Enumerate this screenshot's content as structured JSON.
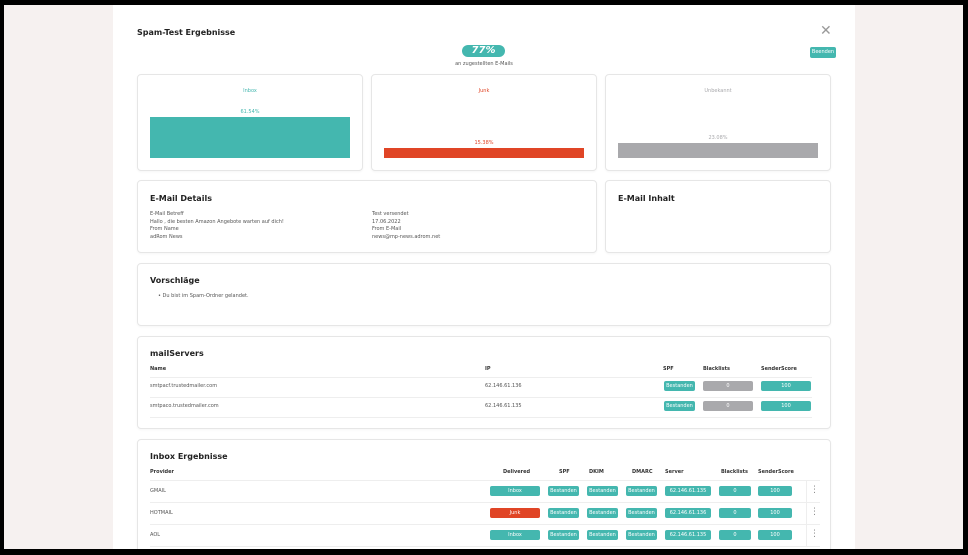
{
  "title": "Spam-Test Ergebnisse",
  "score": "77%",
  "score_caption": "an zugestellten E-Mails",
  "finish_label": "Beenden",
  "colors": {
    "teal": "#44b7af",
    "red": "#e04526",
    "gray": "#a9a9ac"
  },
  "stats": [
    {
      "label": "Inbox",
      "percent": 61.54,
      "text": "61.54%",
      "color": "#44b7af"
    },
    {
      "label": "Junk",
      "percent": 15.38,
      "text": "15.38%",
      "color": "#e04526"
    },
    {
      "label": "Unbekannt",
      "percent": 23.08,
      "text": "23.08%",
      "color": "#a9a9ac"
    }
  ],
  "details": {
    "title": "E-Mail Details",
    "subject_label": "E-Mail Betreff",
    "subject": "Hallo , die besten Amazon Angebote warten auf dich!",
    "from_name_label": "From Name",
    "from_name": "adRom News",
    "sent_label": "Test versendet",
    "sent": "17.06.2022",
    "from_email_label": "From E-Mail",
    "from_email": "news@mp-news.adrom.net"
  },
  "content": {
    "title": "E-Mail Inhalt"
  },
  "suggestions": {
    "title": "Vorschläge",
    "items": [
      "Du bist im Spam-Ordner gelandet."
    ]
  },
  "mailservers": {
    "title": "mailServers",
    "headers": [
      "Name",
      "IP",
      "SPF",
      "Blacklists",
      "SenderScore"
    ],
    "rows": [
      [
        "smtpacf.trustedmailer.com",
        "62.146.61.136",
        "Bestanden",
        "0",
        "100"
      ],
      [
        "smtpaco.trustedmailer.com",
        "62.146.61.135",
        "Bestanden",
        "0",
        "100"
      ]
    ]
  },
  "inbox": {
    "title": "Inbox Ergebnisse",
    "headers": [
      "Provider",
      "Delivered",
      "SPF",
      "DKIM",
      "DMARC",
      "Server",
      "Blacklists",
      "SenderScore"
    ],
    "rows": [
      [
        "GMAIL",
        "Inbox",
        "Bestanden",
        "Bestanden",
        "Bestanden",
        "62.146.61.135",
        "0",
        "100"
      ],
      [
        "HOTMAIL",
        "Junk",
        "Bestanden",
        "Bestanden",
        "Bestanden",
        "62.146.61.136",
        "0",
        "100"
      ],
      [
        "AOL",
        "Inbox",
        "Bestanden",
        "Bestanden",
        "Bestanden",
        "62.146.61.135",
        "0",
        "100"
      ]
    ]
  }
}
